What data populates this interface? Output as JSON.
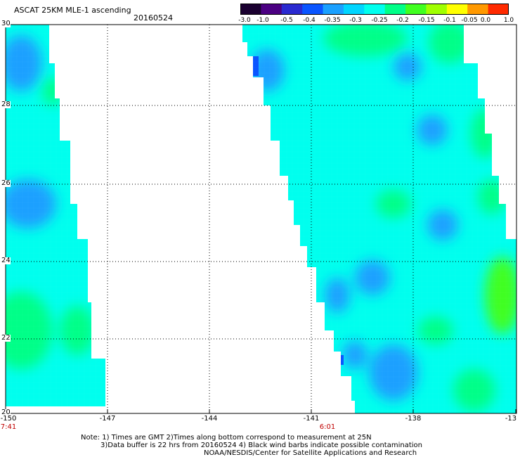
{
  "header": {
    "title": "ASCAT 25KM MLE-1 ascending",
    "date": "20160524"
  },
  "colorbar": {
    "labels": [
      "-3.0",
      "-1.0",
      "-0.5",
      "-0.4",
      "-0.35",
      "-0.3",
      "-0.25",
      "-0.2",
      "-0.15",
      "-0.1",
      "-0.05",
      "0.0",
      "1.0"
    ],
    "colors": [
      "#1a0030",
      "#4b0082",
      "#2a2ad0",
      "#0a55ff",
      "#1aa0ff",
      "#00d5ff",
      "#00ffee",
      "#00ff88",
      "#40ff20",
      "#a0ff00",
      "#ffff00",
      "#ff9900",
      "#ff2a00"
    ]
  },
  "map": {
    "lat_labels": [
      "30",
      "28",
      "26",
      "24",
      "22",
      "20"
    ],
    "lon_labels": [
      "-150",
      "-147",
      "-144",
      "-141",
      "-138",
      "-13"
    ],
    "times": [
      "7:41",
      "6:01"
    ],
    "swath_colors": {
      "dominant": "#00ffee",
      "low": "#1aa0ff",
      "lower": "#0a55ff",
      "high": "#00ff88",
      "higher": "#40ff20"
    }
  },
  "footer": {
    "note_line1": "Note: 1) Times are GMT 2)Times along bottom correspond to measurement at 25N",
    "note_line2": "3)Data buffer is 22 hrs from 20160524 4) Black wind barbs indicate possible contamination",
    "note_line3": "NOAA/NESDIS/Center for Satellite Applications and Research"
  }
}
